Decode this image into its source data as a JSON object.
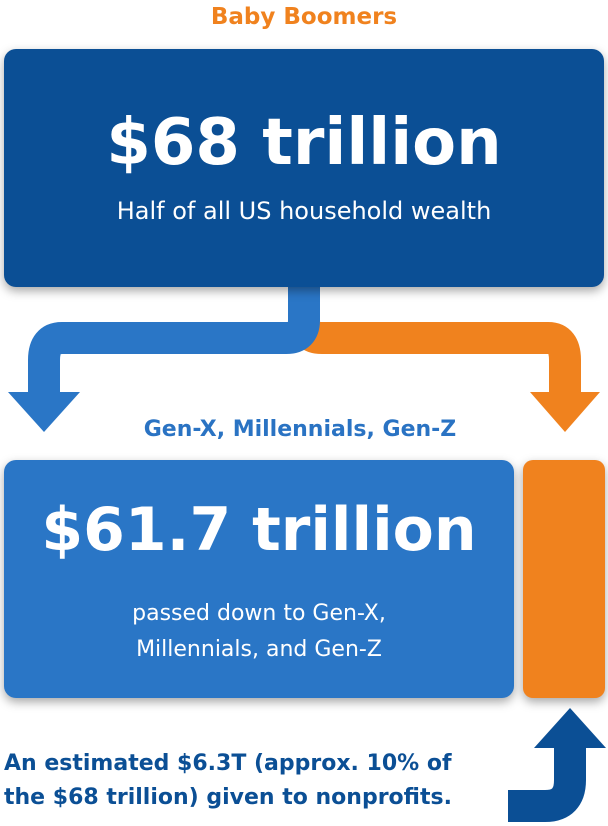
{
  "generation_label": "Baby Boomers",
  "total": {
    "amount": "$68 trillion",
    "description": "Half of all US household wealth"
  },
  "heirs": {
    "label": "Gen-X, Millennials, Gen-Z",
    "amount": "$61.7 trillion",
    "description_line1": "passed down to Gen-X,",
    "description_line2": "Millennials, and Gen-Z"
  },
  "nonprofits": {
    "line1": "An estimated $6.3T (approx. 10% of",
    "line2": "the $68 trillion) given to nonprofits."
  },
  "colors": {
    "dark_blue": "#0b4f95",
    "mid_blue": "#2a76c6",
    "orange": "#f0821e"
  }
}
